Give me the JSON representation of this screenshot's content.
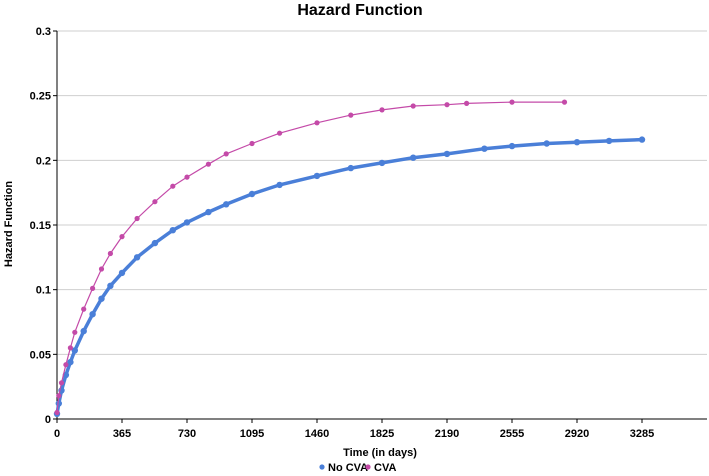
{
  "chart_data": {
    "type": "scatter",
    "title": "Hazard Function",
    "xlabel": "Time (in days)",
    "ylabel": "Hazard Function",
    "xlim": [
      0,
      3650
    ],
    "ylim": [
      0,
      0.3
    ],
    "x_ticks": [
      0,
      365,
      730,
      1095,
      1460,
      1825,
      2190,
      2555,
      2920,
      3285
    ],
    "y_ticks": [
      0,
      0.05,
      0.1,
      0.15,
      0.2,
      0.25,
      0.3
    ],
    "y_tick_labels": [
      "0",
      "0.05",
      "0.1",
      "0.15",
      "0.2",
      "0.25",
      "0.3"
    ],
    "grid": "horizontal",
    "legend_position": "bottom",
    "series": [
      {
        "name": "No CVA",
        "color": "#4a7fd8",
        "points": [
          [
            0,
            0.004
          ],
          [
            10,
            0.012
          ],
          [
            25,
            0.022
          ],
          [
            50,
            0.034
          ],
          [
            75,
            0.044
          ],
          [
            100,
            0.053
          ],
          [
            150,
            0.068
          ],
          [
            200,
            0.081
          ],
          [
            250,
            0.093
          ],
          [
            300,
            0.103
          ],
          [
            365,
            0.113
          ],
          [
            450,
            0.125
          ],
          [
            550,
            0.136
          ],
          [
            650,
            0.146
          ],
          [
            730,
            0.152
          ],
          [
            850,
            0.16
          ],
          [
            950,
            0.166
          ],
          [
            1095,
            0.174
          ],
          [
            1250,
            0.181
          ],
          [
            1460,
            0.188
          ],
          [
            1650,
            0.194
          ],
          [
            1825,
            0.198
          ],
          [
            2000,
            0.202
          ],
          [
            2190,
            0.205
          ],
          [
            2400,
            0.209
          ],
          [
            2555,
            0.211
          ],
          [
            2750,
            0.213
          ],
          [
            2920,
            0.214
          ],
          [
            3100,
            0.215
          ],
          [
            3285,
            0.216
          ]
        ]
      },
      {
        "name": "CVA",
        "color": "#c44aa8",
        "points": [
          [
            0,
            0.005
          ],
          [
            10,
            0.018
          ],
          [
            25,
            0.028
          ],
          [
            50,
            0.042
          ],
          [
            75,
            0.055
          ],
          [
            100,
            0.067
          ],
          [
            150,
            0.085
          ],
          [
            200,
            0.101
          ],
          [
            250,
            0.116
          ],
          [
            300,
            0.128
          ],
          [
            365,
            0.141
          ],
          [
            450,
            0.155
          ],
          [
            550,
            0.168
          ],
          [
            650,
            0.18
          ],
          [
            730,
            0.187
          ],
          [
            850,
            0.197
          ],
          [
            950,
            0.205
          ],
          [
            1095,
            0.213
          ],
          [
            1250,
            0.221
          ],
          [
            1460,
            0.229
          ],
          [
            1650,
            0.235
          ],
          [
            1825,
            0.239
          ],
          [
            2000,
            0.242
          ],
          [
            2190,
            0.243
          ],
          [
            2300,
            0.244
          ],
          [
            2555,
            0.245
          ],
          [
            2850,
            0.245
          ]
        ]
      }
    ]
  }
}
